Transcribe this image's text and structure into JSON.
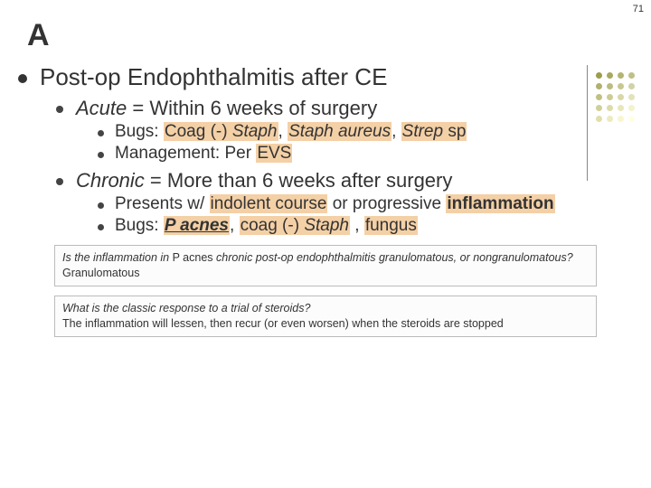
{
  "page_number": "71",
  "slide_letter": "A",
  "colors": {
    "highlight": "#f4d0a6",
    "text": "#333333",
    "box_border": "#bbbbbb",
    "box_bg": "#fcfcfc",
    "dot_palette": [
      "#9c9c4d",
      "#a8a860",
      "#b4b472",
      "#c0bf85",
      "#b0b070",
      "#bcbc82",
      "#c8c794",
      "#d3d2a6",
      "#c0c084",
      "#cccc96",
      "#d8d7a8",
      "#e3e2ba",
      "#d0d098",
      "#dcdbaa",
      "#e8e7bc",
      "#f3f2ce",
      "#e0dfac",
      "#ecebbe",
      "#f7f6d0",
      "#ffffe2"
    ]
  },
  "heading": "Post-op Endophthalmitis after CE",
  "acute": {
    "label_italic": "Acute",
    "label_rest": " = Within 6 weeks of surgery",
    "bugs_prefix": "Bugs: ",
    "bugs_hl1": "Coag (-) ",
    "bugs_hl1_italic": "Staph",
    "bugs_sep1": ", ",
    "bugs_hl2_italic": "Staph aureus",
    "bugs_sep2": ", ",
    "bugs_hl3_italic": "Strep",
    "bugs_hl3_rest": " sp",
    "mgmt_prefix": "Management: Per ",
    "mgmt_hl": "EVS"
  },
  "chronic": {
    "label_italic": "Chronic",
    "label_rest": " = More than 6 weeks after surgery",
    "presents_prefix": "Presents w/ ",
    "presents_hl1": "indolent course",
    "presents_mid": " or progressive ",
    "presents_hl2": "inflammation",
    "bugs_prefix": "Bugs: ",
    "bugs_hl1_bolditalic": "P acnes",
    "bugs_sep1": ", ",
    "bugs_hl2_pre": "coag (-) ",
    "bugs_hl2_italic": "Staph",
    "bugs_sep2": " , ",
    "bugs_hl3": "fungus"
  },
  "qa1": {
    "q_pre": "Is the inflammation in ",
    "q_mid": "P acnes",
    "q_post": " chronic post-op endophthalmitis granulomatous, or nongranulomatous?",
    "a": "Granulomatous"
  },
  "qa2": {
    "q": "What is the classic response to a trial of steroids?",
    "a": "The inflammation will lessen, then recur (or even worsen) when the steroids are stopped"
  }
}
